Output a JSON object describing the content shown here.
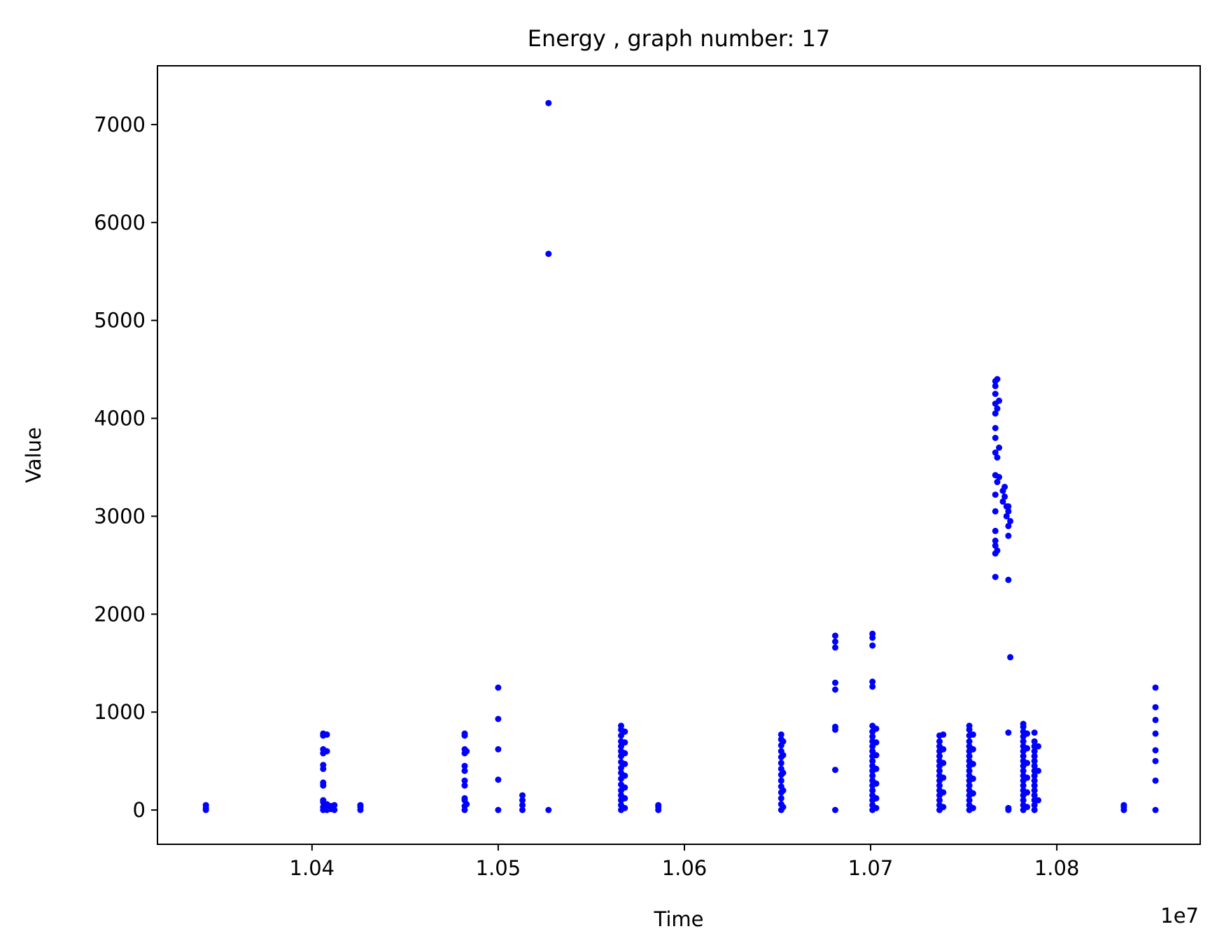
{
  "chart_data": {
    "type": "scatter",
    "title": "Energy , graph number: 17",
    "xlabel": "Time",
    "ylabel": "Value",
    "x_offset_label": "1e7",
    "xlim": [
      10317000,
      10877000
    ],
    "ylim": [
      -350,
      7600
    ],
    "x_ticks": [
      {
        "value": 10400000,
        "label": "1.04"
      },
      {
        "value": 10500000,
        "label": "1.05"
      },
      {
        "value": 10600000,
        "label": "1.06"
      },
      {
        "value": 10700000,
        "label": "1.07"
      },
      {
        "value": 10800000,
        "label": "1.08"
      }
    ],
    "y_ticks": [
      {
        "value": 0,
        "label": "0"
      },
      {
        "value": 1000,
        "label": "1000"
      },
      {
        "value": 2000,
        "label": "2000"
      },
      {
        "value": 3000,
        "label": "3000"
      },
      {
        "value": 4000,
        "label": "4000"
      },
      {
        "value": 5000,
        "label": "5000"
      },
      {
        "value": 6000,
        "label": "6000"
      },
      {
        "value": 7000,
        "label": "7000"
      }
    ],
    "grid": false,
    "marker_color": "#0000ff",
    "series": [
      {
        "points": [
          [
            10343000,
            0
          ],
          [
            10343000,
            20
          ],
          [
            10343000,
            50
          ],
          [
            10406000,
            0
          ],
          [
            10406000,
            30
          ],
          [
            10406000,
            80
          ],
          [
            10406000,
            100
          ],
          [
            10406000,
            250
          ],
          [
            10406000,
            280
          ],
          [
            10406000,
            420
          ],
          [
            10406000,
            460
          ],
          [
            10406000,
            580
          ],
          [
            10406000,
            620
          ],
          [
            10406000,
            760
          ],
          [
            10406000,
            780
          ],
          [
            10408000,
            0
          ],
          [
            10408000,
            60
          ],
          [
            10408000,
            600
          ],
          [
            10408000,
            770
          ],
          [
            10410000,
            10
          ],
          [
            10410000,
            40
          ],
          [
            10412000,
            0
          ],
          [
            10412000,
            50
          ],
          [
            10426000,
            0
          ],
          [
            10426000,
            30
          ],
          [
            10426000,
            50
          ],
          [
            10482000,
            0
          ],
          [
            10482000,
            40
          ],
          [
            10482000,
            100
          ],
          [
            10482000,
            120
          ],
          [
            10482000,
            250
          ],
          [
            10482000,
            300
          ],
          [
            10482000,
            400
          ],
          [
            10482000,
            450
          ],
          [
            10482000,
            580
          ],
          [
            10482000,
            620
          ],
          [
            10482000,
            760
          ],
          [
            10482000,
            780
          ],
          [
            10483000,
            60
          ],
          [
            10483000,
            600
          ],
          [
            10500000,
            0
          ],
          [
            10500000,
            310
          ],
          [
            10500000,
            620
          ],
          [
            10500000,
            930
          ],
          [
            10500000,
            1250
          ],
          [
            10513000,
            0
          ],
          [
            10513000,
            50
          ],
          [
            10513000,
            100
          ],
          [
            10513000,
            150
          ],
          [
            10527000,
            0
          ],
          [
            10527000,
            5680
          ],
          [
            10527000,
            7220
          ],
          [
            10566000,
            0
          ],
          [
            10566000,
            50
          ],
          [
            10566000,
            100
          ],
          [
            10566000,
            150
          ],
          [
            10566000,
            200
          ],
          [
            10566000,
            260
          ],
          [
            10566000,
            320
          ],
          [
            10566000,
            380
          ],
          [
            10566000,
            430
          ],
          [
            10566000,
            490
          ],
          [
            10566000,
            550
          ],
          [
            10566000,
            600
          ],
          [
            10566000,
            650
          ],
          [
            10566000,
            700
          ],
          [
            10566000,
            760
          ],
          [
            10566000,
            820
          ],
          [
            10566000,
            860
          ],
          [
            10568000,
            20
          ],
          [
            10568000,
            120
          ],
          [
            10568000,
            230
          ],
          [
            10568000,
            350
          ],
          [
            10568000,
            470
          ],
          [
            10568000,
            580
          ],
          [
            10568000,
            690
          ],
          [
            10568000,
            800
          ],
          [
            10586000,
            0
          ],
          [
            10586000,
            30
          ],
          [
            10586000,
            50
          ],
          [
            10652000,
            0
          ],
          [
            10652000,
            60
          ],
          [
            10652000,
            120
          ],
          [
            10652000,
            180
          ],
          [
            10652000,
            240
          ],
          [
            10652000,
            300
          ],
          [
            10652000,
            360
          ],
          [
            10652000,
            420
          ],
          [
            10652000,
            480
          ],
          [
            10652000,
            540
          ],
          [
            10652000,
            600
          ],
          [
            10652000,
            660
          ],
          [
            10652000,
            720
          ],
          [
            10652000,
            770
          ],
          [
            10653000,
            30
          ],
          [
            10653000,
            200
          ],
          [
            10653000,
            380
          ],
          [
            10653000,
            560
          ],
          [
            10653000,
            700
          ],
          [
            10681000,
            0
          ],
          [
            10681000,
            410
          ],
          [
            10681000,
            820
          ],
          [
            10681000,
            850
          ],
          [
            10681000,
            1230
          ],
          [
            10681000,
            1300
          ],
          [
            10681000,
            1660
          ],
          [
            10681000,
            1720
          ],
          [
            10681000,
            1780
          ],
          [
            10701000,
            0
          ],
          [
            10701000,
            50
          ],
          [
            10701000,
            100
          ],
          [
            10701000,
            150
          ],
          [
            10701000,
            200
          ],
          [
            10701000,
            250
          ],
          [
            10701000,
            300
          ],
          [
            10701000,
            350
          ],
          [
            10701000,
            400
          ],
          [
            10701000,
            450
          ],
          [
            10701000,
            500
          ],
          [
            10701000,
            550
          ],
          [
            10701000,
            600
          ],
          [
            10701000,
            650
          ],
          [
            10701000,
            700
          ],
          [
            10701000,
            750
          ],
          [
            10701000,
            800
          ],
          [
            10701000,
            860
          ],
          [
            10701000,
            1260
          ],
          [
            10701000,
            1310
          ],
          [
            10701000,
            1680
          ],
          [
            10701000,
            1760
          ],
          [
            10701000,
            1800
          ],
          [
            10703000,
            20
          ],
          [
            10703000,
            120
          ],
          [
            10703000,
            270
          ],
          [
            10703000,
            420
          ],
          [
            10703000,
            560
          ],
          [
            10703000,
            690
          ],
          [
            10703000,
            830
          ],
          [
            10737000,
            0
          ],
          [
            10737000,
            50
          ],
          [
            10737000,
            100
          ],
          [
            10737000,
            150
          ],
          [
            10737000,
            200
          ],
          [
            10737000,
            250
          ],
          [
            10737000,
            300
          ],
          [
            10737000,
            350
          ],
          [
            10737000,
            400
          ],
          [
            10737000,
            450
          ],
          [
            10737000,
            500
          ],
          [
            10737000,
            550
          ],
          [
            10737000,
            600
          ],
          [
            10737000,
            650
          ],
          [
            10737000,
            700
          ],
          [
            10737000,
            760
          ],
          [
            10739000,
            30
          ],
          [
            10739000,
            180
          ],
          [
            10739000,
            330
          ],
          [
            10739000,
            480
          ],
          [
            10739000,
            620
          ],
          [
            10739000,
            770
          ],
          [
            10753000,
            0
          ],
          [
            10753000,
            50
          ],
          [
            10753000,
            100
          ],
          [
            10753000,
            150
          ],
          [
            10753000,
            200
          ],
          [
            10753000,
            250
          ],
          [
            10753000,
            300
          ],
          [
            10753000,
            350
          ],
          [
            10753000,
            400
          ],
          [
            10753000,
            450
          ],
          [
            10753000,
            500
          ],
          [
            10753000,
            550
          ],
          [
            10753000,
            600
          ],
          [
            10753000,
            650
          ],
          [
            10753000,
            700
          ],
          [
            10753000,
            760
          ],
          [
            10753000,
            820
          ],
          [
            10753000,
            860
          ],
          [
            10755000,
            20
          ],
          [
            10755000,
            170
          ],
          [
            10755000,
            320
          ],
          [
            10755000,
            470
          ],
          [
            10755000,
            620
          ],
          [
            10755000,
            770
          ],
          [
            10767000,
            2380
          ],
          [
            10767000,
            2620
          ],
          [
            10767000,
            2700
          ],
          [
            10767000,
            2750
          ],
          [
            10767000,
            2850
          ],
          [
            10767000,
            3050
          ],
          [
            10767000,
            3220
          ],
          [
            10767000,
            3420
          ],
          [
            10767000,
            3650
          ],
          [
            10767000,
            3800
          ],
          [
            10767000,
            3900
          ],
          [
            10767000,
            4050
          ],
          [
            10767000,
            4150
          ],
          [
            10767000,
            4250
          ],
          [
            10767000,
            4330
          ],
          [
            10767000,
            4380
          ],
          [
            10768000,
            2650
          ],
          [
            10768000,
            3350
          ],
          [
            10768000,
            3600
          ],
          [
            10768000,
            4100
          ],
          [
            10768000,
            4400
          ],
          [
            10769000,
            3400
          ],
          [
            10769000,
            3700
          ],
          [
            10769000,
            4180
          ],
          [
            10771000,
            3150
          ],
          [
            10771000,
            3260
          ],
          [
            10772000,
            3200
          ],
          [
            10772000,
            3300
          ],
          [
            10773000,
            3000
          ],
          [
            10773000,
            3100
          ],
          [
            10774000,
            0
          ],
          [
            10774000,
            20
          ],
          [
            10774000,
            790
          ],
          [
            10774000,
            2350
          ],
          [
            10774000,
            2800
          ],
          [
            10774000,
            2900
          ],
          [
            10774000,
            3050
          ],
          [
            10774000,
            3100
          ],
          [
            10775000,
            1560
          ],
          [
            10775000,
            2950
          ],
          [
            10782000,
            0
          ],
          [
            10782000,
            50
          ],
          [
            10782000,
            100
          ],
          [
            10782000,
            150
          ],
          [
            10782000,
            200
          ],
          [
            10782000,
            250
          ],
          [
            10782000,
            300
          ],
          [
            10782000,
            350
          ],
          [
            10782000,
            400
          ],
          [
            10782000,
            450
          ],
          [
            10782000,
            500
          ],
          [
            10782000,
            550
          ],
          [
            10782000,
            600
          ],
          [
            10782000,
            650
          ],
          [
            10782000,
            700
          ],
          [
            10782000,
            750
          ],
          [
            10782000,
            800
          ],
          [
            10782000,
            850
          ],
          [
            10782000,
            880
          ],
          [
            10784000,
            30
          ],
          [
            10784000,
            180
          ],
          [
            10784000,
            330
          ],
          [
            10784000,
            480
          ],
          [
            10784000,
            630
          ],
          [
            10784000,
            780
          ],
          [
            10788000,
            0
          ],
          [
            10788000,
            50
          ],
          [
            10788000,
            100
          ],
          [
            10788000,
            150
          ],
          [
            10788000,
            200
          ],
          [
            10788000,
            250
          ],
          [
            10788000,
            300
          ],
          [
            10788000,
            350
          ],
          [
            10788000,
            400
          ],
          [
            10788000,
            450
          ],
          [
            10788000,
            500
          ],
          [
            10788000,
            550
          ],
          [
            10788000,
            600
          ],
          [
            10788000,
            650
          ],
          [
            10788000,
            700
          ],
          [
            10788000,
            790
          ],
          [
            10790000,
            100
          ],
          [
            10790000,
            400
          ],
          [
            10790000,
            650
          ],
          [
            10836000,
            0
          ],
          [
            10836000,
            30
          ],
          [
            10836000,
            50
          ],
          [
            10853000,
            0
          ],
          [
            10853000,
            300
          ],
          [
            10853000,
            500
          ],
          [
            10853000,
            610
          ],
          [
            10853000,
            780
          ],
          [
            10853000,
            920
          ],
          [
            10853000,
            1050
          ],
          [
            10853000,
            1250
          ]
        ]
      }
    ]
  }
}
